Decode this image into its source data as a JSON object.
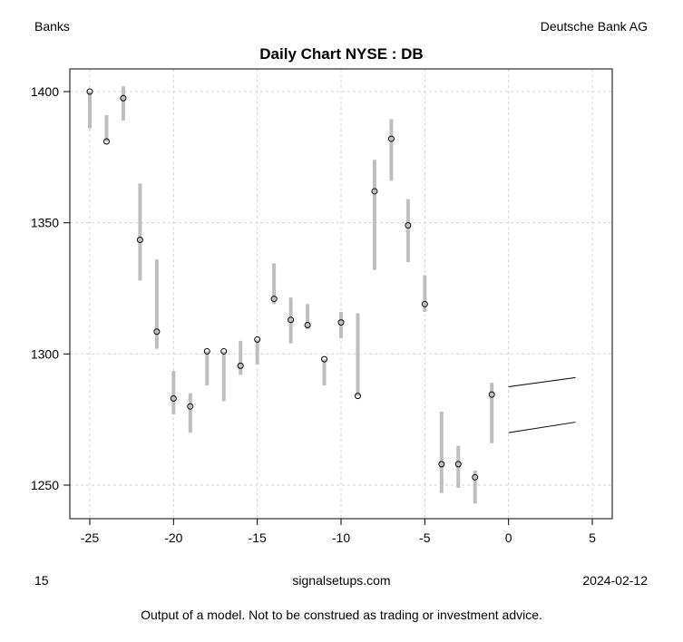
{
  "header": {
    "left": "Banks",
    "right": "Deutsche Bank AG"
  },
  "footer": {
    "left": "15",
    "center": "signalsetups.com",
    "right": "2024-02-12",
    "disclaimer": "Output of a model. Not to be construed as trading or investment advice."
  },
  "chart_data": {
    "type": "scatter",
    "title": "Daily Chart NYSE : DB",
    "xlabel": "",
    "ylabel": "",
    "xlim": [
      -26.2,
      6.2
    ],
    "ylim": [
      1233,
      1408
    ],
    "grid": true,
    "xticks": [
      -25,
      -20,
      -15,
      -10,
      -5,
      0,
      5
    ],
    "yticks": [
      1250,
      1300,
      1350,
      1400
    ],
    "colors": {
      "range": "#bebebe",
      "close": "#000000",
      "forecast": "#000000",
      "grid": "#d3d3d3"
    },
    "bars": [
      {
        "x": -25,
        "close": 1400,
        "high": 1400,
        "low": 1386
      },
      {
        "x": -24,
        "close": 1381,
        "high": 1391,
        "low": 1381
      },
      {
        "x": -23,
        "close": 1397.5,
        "high": 1402,
        "low": 1389
      },
      {
        "x": -22,
        "close": 1343.5,
        "high": 1365,
        "low": 1328
      },
      {
        "x": -21,
        "close": 1308.5,
        "high": 1336,
        "low": 1302
      },
      {
        "x": -20,
        "close": 1283,
        "high": 1293.5,
        "low": 1277
      },
      {
        "x": -19,
        "close": 1280,
        "high": 1285,
        "low": 1270
      },
      {
        "x": -18,
        "close": 1301,
        "high": 1301,
        "low": 1288
      },
      {
        "x": -17,
        "close": 1301,
        "high": 1301,
        "low": 1282
      },
      {
        "x": -16,
        "close": 1295.5,
        "high": 1305,
        "low": 1292
      },
      {
        "x": -15,
        "close": 1305.5,
        "high": 1305.5,
        "low": 1296
      },
      {
        "x": -14,
        "close": 1321,
        "high": 1334.5,
        "low": 1319
      },
      {
        "x": -13,
        "close": 1313,
        "high": 1321.5,
        "low": 1304
      },
      {
        "x": -12,
        "close": 1311,
        "high": 1319,
        "low": 1309.5
      },
      {
        "x": -11,
        "close": 1298,
        "high": 1298,
        "low": 1288
      },
      {
        "x": -10,
        "close": 1312,
        "high": 1316,
        "low": 1306
      },
      {
        "x": -9,
        "close": 1284,
        "high": 1315.5,
        "low": 1284
      },
      {
        "x": -8,
        "close": 1362,
        "high": 1374,
        "low": 1332
      },
      {
        "x": -7,
        "close": 1382,
        "high": 1389.5,
        "low": 1366
      },
      {
        "x": -6,
        "close": 1349,
        "high": 1359,
        "low": 1335
      },
      {
        "x": -5,
        "close": 1319,
        "high": 1330,
        "low": 1316
      },
      {
        "x": -4,
        "close": 1258,
        "high": 1278,
        "low": 1247
      },
      {
        "x": -3,
        "close": 1258,
        "high": 1265,
        "low": 1249
      },
      {
        "x": -2,
        "close": 1253,
        "high": 1255.5,
        "low": 1243
      },
      {
        "x": -1,
        "close": 1284.5,
        "high": 1289,
        "low": 1266
      }
    ],
    "forecast": [
      {
        "x": [
          0,
          4
        ],
        "y": [
          1287.5,
          1291
        ]
      },
      {
        "x": [
          0,
          4
        ],
        "y": [
          1270,
          1274
        ]
      }
    ]
  }
}
